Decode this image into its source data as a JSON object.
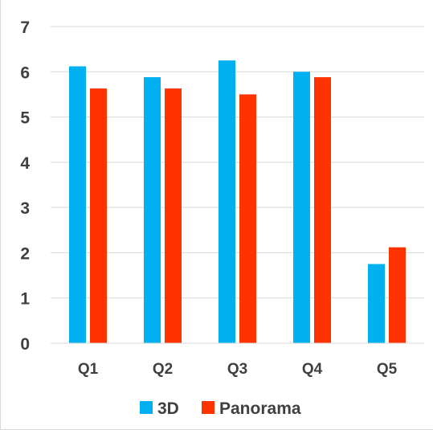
{
  "chart_data": {
    "type": "bar",
    "categories": [
      "Q1",
      "Q2",
      "Q3",
      "Q4",
      "Q5"
    ],
    "series": [
      {
        "name": "3D",
        "color": "#00b0f0",
        "values": [
          6.12,
          5.88,
          6.25,
          6.0,
          1.75
        ]
      },
      {
        "name": "Panorama",
        "color": "#ff3300",
        "values": [
          5.63,
          5.63,
          5.5,
          5.88,
          2.12
        ]
      }
    ],
    "title": "",
    "xlabel": "",
    "ylabel": "",
    "ylim": [
      0,
      7
    ],
    "yticks": [
      0,
      1,
      2,
      3,
      4,
      5,
      6,
      7
    ],
    "grid": true,
    "legend": "bottom"
  }
}
